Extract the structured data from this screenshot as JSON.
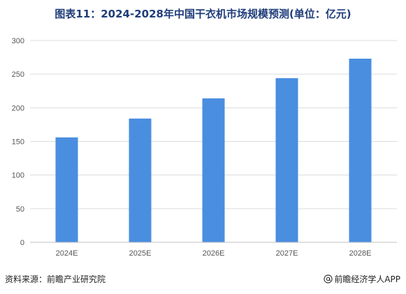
{
  "chart_data": {
    "type": "bar",
    "title": "图表11：2024-2028年中国干衣机市场规模预测(单位：亿元)",
    "categories": [
      "2024E",
      "2025E",
      "2026E",
      "2027E",
      "2028E"
    ],
    "values": [
      156,
      184,
      214,
      244,
      273
    ],
    "xlabel": "",
    "ylabel": "",
    "ylim": [
      0,
      300
    ],
    "yticks": [
      0,
      50,
      100,
      150,
      200,
      250,
      300
    ],
    "grid": true,
    "legend": "none",
    "bar_color": "#4a8ee0",
    "grid_color": "#dcdcdc"
  },
  "footer": {
    "source": "资料来源：前瞻产业研究院",
    "brand": "前瞻经济学人APP"
  },
  "icons": {
    "brand": "at-sign-icon",
    "watermark": "qianzhan-logo-watermark"
  }
}
